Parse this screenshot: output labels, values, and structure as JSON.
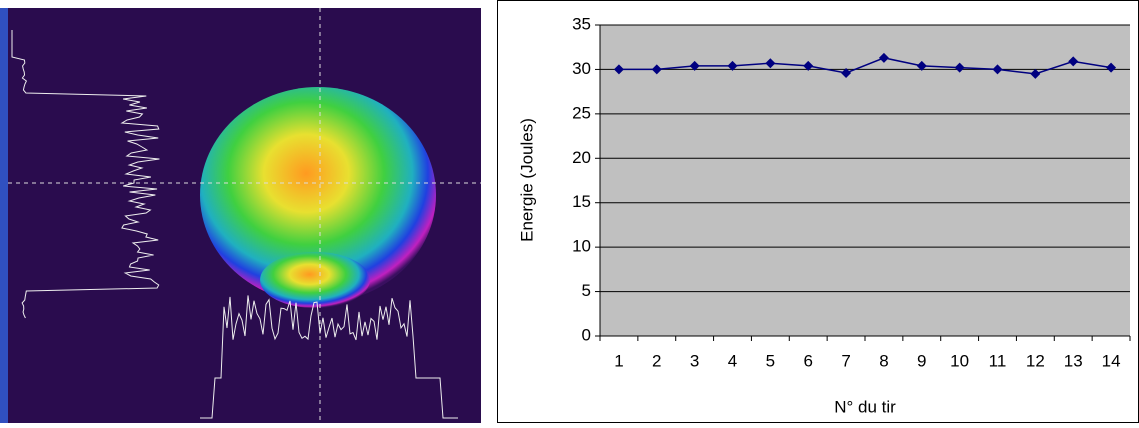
{
  "chart_data": {
    "type": "line",
    "y_label": "Energie (Joules)",
    "x_label": "N° du tir",
    "categories": [
      "1",
      "2",
      "3",
      "4",
      "5",
      "6",
      "7",
      "8",
      "9",
      "10",
      "11",
      "12",
      "13",
      "14"
    ],
    "series": [
      {
        "name": "Energie",
        "color": "#000080",
        "values": [
          30,
          30,
          30.4,
          30.4,
          30.7,
          30.4,
          29.6,
          31.3,
          30.4,
          30.2,
          30,
          29.5,
          30.9,
          30.2
        ]
      }
    ],
    "ylim": [
      0,
      35
    ],
    "yticks": [
      0,
      5,
      10,
      15,
      20,
      25,
      30,
      35
    ],
    "grid": true,
    "plot_background": "#c0c0c0"
  }
}
